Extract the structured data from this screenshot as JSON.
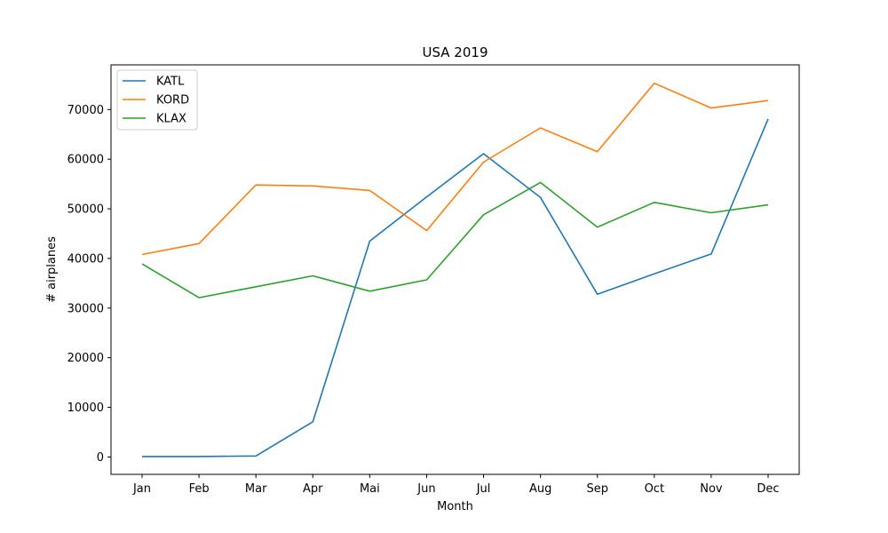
{
  "chart_data": {
    "type": "line",
    "title": "USA 2019",
    "xlabel": "Month",
    "ylabel": "# airplanes",
    "categories": [
      "Jan",
      "Feb",
      "Mar",
      "Apr",
      "Mai",
      "Jun",
      "Jul",
      "Aug",
      "Sep",
      "Oct",
      "Nov",
      "Dec"
    ],
    "ylim": [
      -3500,
      79000
    ],
    "yticks": [
      0,
      10000,
      20000,
      30000,
      40000,
      50000,
      60000,
      70000
    ],
    "grid": false,
    "legend_position": "top-left",
    "series": [
      {
        "name": "KATL",
        "color": "#1f77b4",
        "values": [
          100,
          100,
          200,
          7100,
          43500,
          52400,
          61100,
          52300,
          32800,
          36900,
          40900,
          68100
        ]
      },
      {
        "name": "KORD",
        "color": "#ff7f0e",
        "values": [
          40800,
          43000,
          54800,
          54600,
          53700,
          45600,
          59400,
          66300,
          61500,
          75300,
          70300,
          71800
        ]
      },
      {
        "name": "KLAX",
        "color": "#2ca02c",
        "values": [
          38900,
          32100,
          34300,
          36500,
          33400,
          35700,
          48800,
          55300,
          46300,
          51300,
          49200,
          50800
        ]
      }
    ]
  }
}
